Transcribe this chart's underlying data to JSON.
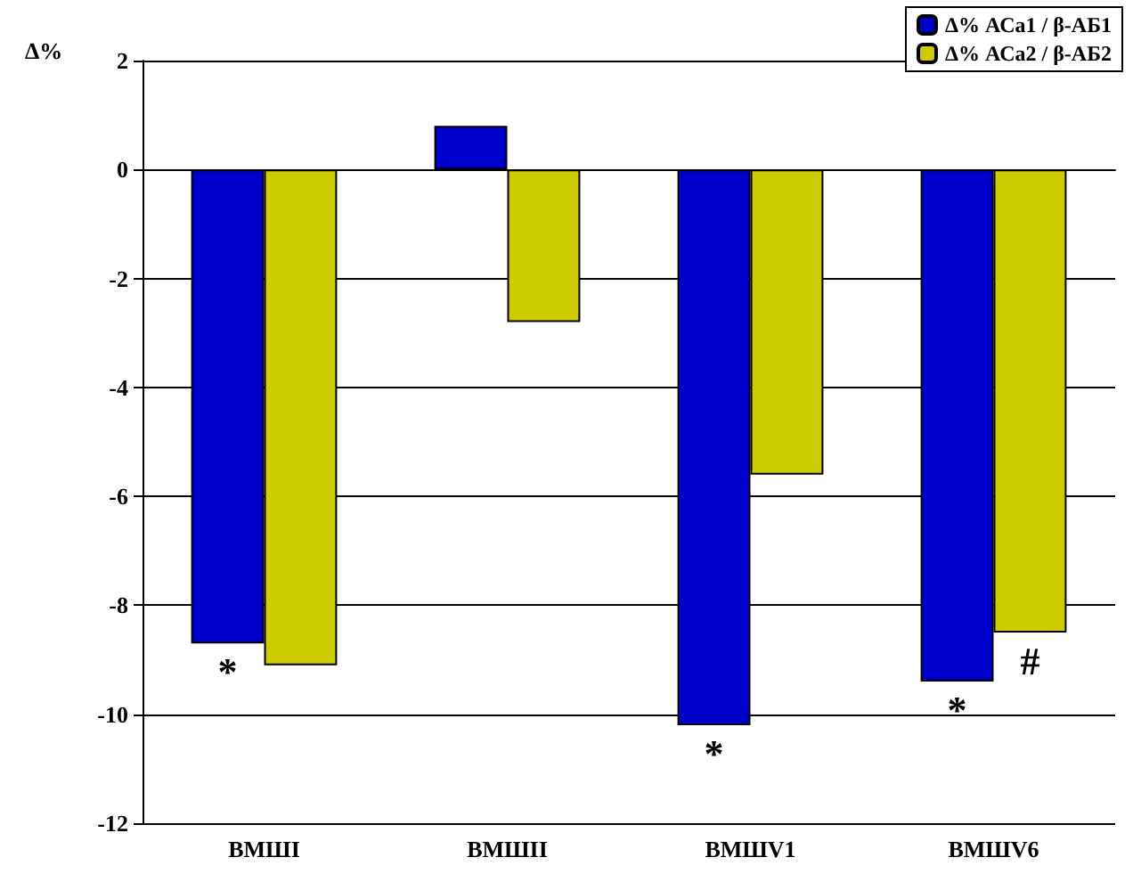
{
  "chart_data": {
    "type": "bar",
    "ylabel": "Δ%",
    "categories": [
      "ВМШI",
      "ВМШII",
      "ВМШV1",
      "ВМШV6"
    ],
    "series": [
      {
        "name": "Δ% АСа1 / β-АБ1",
        "color": "#0000cc",
        "values": [
          -8.7,
          0.8,
          -10.2,
          -9.4
        ]
      },
      {
        "name": "Δ% АСа2 / β-АБ2",
        "color": "#cccc00",
        "values": [
          -9.1,
          -2.8,
          -5.6,
          -8.5
        ]
      }
    ],
    "ylim": [
      -12,
      2
    ],
    "yticks": [
      -12,
      -10,
      -8,
      -6,
      -4,
      -2,
      0,
      2
    ],
    "grid": "y",
    "legend": "top right",
    "annotations": [
      {
        "text": "*",
        "x": "ВМШI",
        "y": -8.7
      },
      {
        "text": "*",
        "x": "ВМШV1",
        "y": -10.2
      },
      {
        "text": "*",
        "x": "ВМШV6",
        "y": -9.4
      },
      {
        "text": "#",
        "x": "ВМШV6",
        "y": -8.5
      }
    ]
  }
}
